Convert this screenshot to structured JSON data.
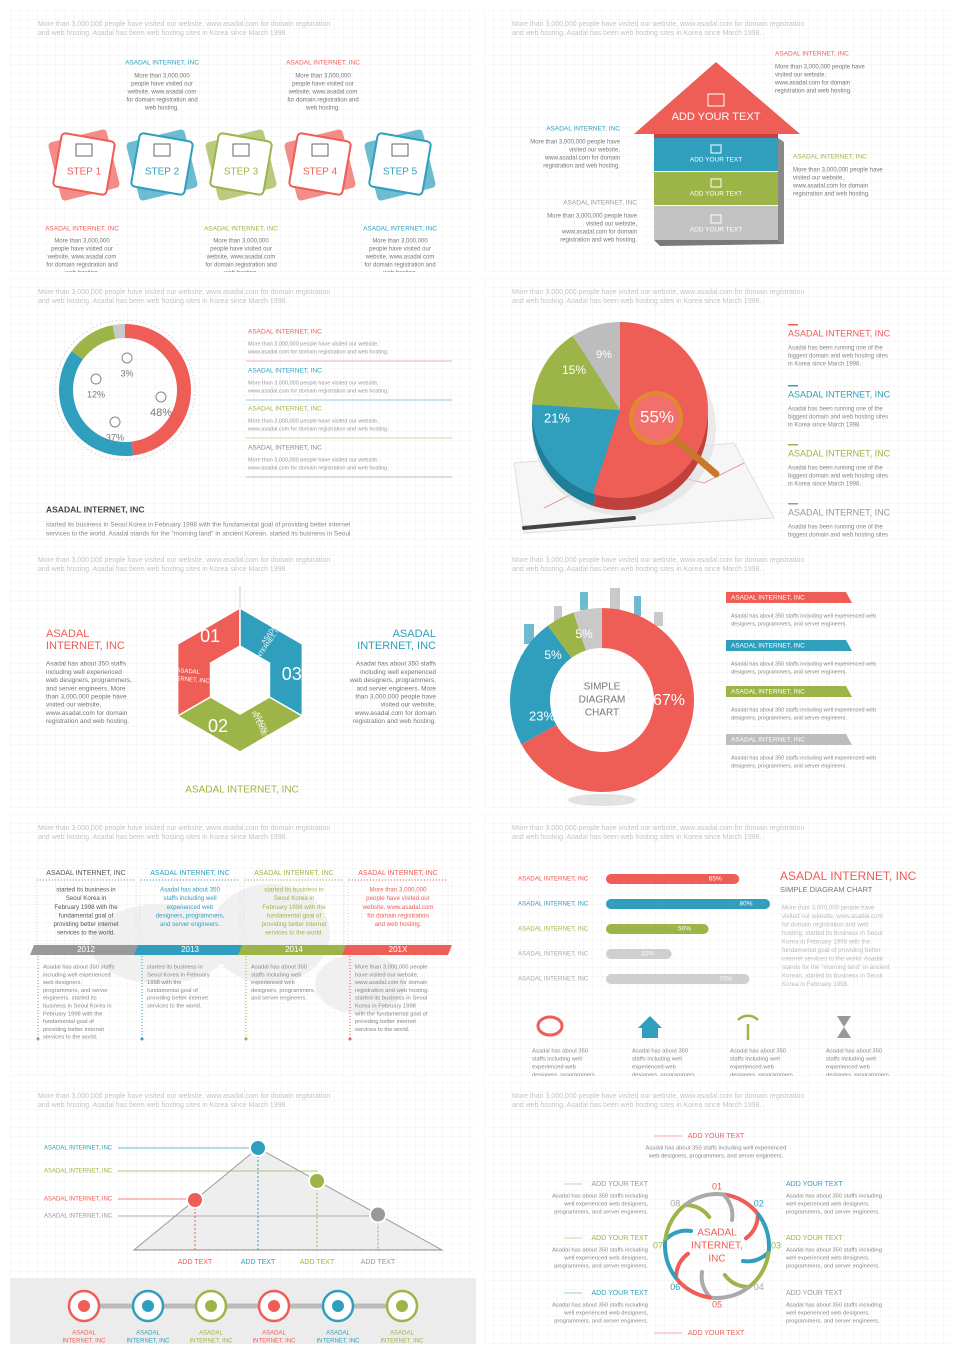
{
  "header": [
    "More than 3,000,000 people have visited our website, www.asadal.com for domain registration",
    "and web hosting.  Asadal has been  web hosting sites in Korea since March 1998."
  ],
  "company": "ASADAL INTERNET, INC",
  "company_lines": [
    "ASADAL",
    "INTERNET, INC"
  ],
  "steps": {
    "labels": [
      "STEP 1",
      "STEP 2",
      "STEP 3",
      "STEP 4",
      "STEP 5"
    ],
    "blurb": [
      "More than 3,000,000",
      "people have visited our",
      "website, www.asadal.com",
      "for domain registration and",
      "web hosting."
    ]
  },
  "arrow": {
    "main": "ADD YOUR TEXT",
    "bands": [
      "ADD YOUR TEXT",
      "ADD YOUR TEXT",
      "ADD YOUR TEXT"
    ],
    "blurb": [
      "More than 3,000,000 people have",
      "visited our website,",
      "www.asadal.com for domain",
      "registration and web hosting."
    ]
  },
  "ring": {
    "values": [
      48,
      37,
      12,
      3
    ],
    "labels": [
      "48%",
      "37%",
      "12%",
      "3%"
    ],
    "item_text": [
      "More than 3,000,000 people have visited our website,",
      "www.asadal.com for domain registration and web hosting."
    ],
    "paragraph": [
      "started its business in  Seoul  Korea  in  February 1998 with the fundamental goal of providing  better  internet",
      "services to the world.  Asadal stands for the \"morning land\" in ancient  Korean.  started its business in  Seoul"
    ]
  },
  "pie": {
    "values": [
      55,
      21,
      15,
      9
    ],
    "labels": [
      "55%",
      "21%",
      "15%",
      "9%"
    ],
    "item_text": [
      "Asadal has been running one of the",
      "biggest domain and web hosting sites",
      "in Korea since March 1998."
    ]
  },
  "hexagon": {
    "text": [
      "Asadal has about 350 staffs",
      "including well experienced",
      "web designers, programmers,",
      "and server engineers. More",
      "than 3,000,000 people have",
      "visited our website,",
      "www.asadal.com for domain",
      "registration and web hosting."
    ],
    "segments": [
      "01",
      "02",
      "03"
    ]
  },
  "donut": {
    "values": [
      67,
      23,
      5,
      5
    ],
    "labels": [
      "67%",
      "23%",
      "5%",
      "5%"
    ],
    "center": [
      "SIMPLE",
      "DIAGRAM",
      "CHART"
    ],
    "item_text": [
      "Asadal has about 350 staffs including well experienced web",
      "designers, programmers, and server engineers."
    ]
  },
  "timeline": {
    "years": [
      "2012",
      "2013",
      "2014",
      "201X"
    ],
    "top": [
      [
        "started its business in",
        "Seoul Korea  in",
        "February 1998 with the",
        "fundamental goal of",
        "providing better internet",
        "services to the world."
      ],
      [
        "Asadal has about 350",
        "staffs including well",
        "experienced web",
        "designers, programmers,",
        "and server engineers."
      ],
      [
        "started its business in",
        "Seoul Korea  in",
        "February 1998 with the",
        "fundamental goal of",
        "providing better internet",
        "services to the world."
      ],
      [
        "More than 3,000,000",
        "people have visited our",
        "website, www.asadal.com",
        "for domain registration",
        "and web hosting."
      ]
    ],
    "bottom": [
      [
        "Asadal has about 350 staffs",
        "including well experienced",
        "web designers,",
        "programmers, and server",
        "engineers.  started its",
        "business in Seoul Korea  in",
        "February 1998 with the",
        "fundamental goal of",
        "providing better internet",
        "services to the world."
      ],
      [
        "started its business in",
        "Seoul Korea  in February",
        "1998 with the",
        "fundamental goal of",
        "providing better internet",
        "services to the world."
      ],
      [
        "Asadal has about 350",
        "staffs including well",
        "experienced web",
        "designers, programmers,",
        "and server engineers."
      ],
      [
        "More than 3,000,000 people",
        "have visited our website,",
        "www.asadal.com for domain",
        "registration and web hosting.",
        "started its business in  Seoul",
        "Korea  in  February 1998",
        "with the fundamental goal of",
        "providing  better  internet",
        "services to the world."
      ]
    ]
  },
  "bars": {
    "values": [
      65,
      80,
      50,
      32,
      70
    ],
    "labels": [
      "65%",
      "80%",
      "50%",
      "32%",
      "70%"
    ],
    "subtitle": "SIMPLE DIAGRAM CHART",
    "paragraph": [
      "More than 3,000,000 people have",
      "visited our website, www.asadal.com",
      "for domain registration and web",
      "hosting.  started its business in  Seoul",
      "Korea  in  February 1998 with the",
      "fundamental goal of providing  better",
      "internet services to the world.  Asadal",
      "stands for the \"morning land\" in ancient",
      "Korean.  started its business in  Seoul",
      "Korea  in  February 1998."
    ],
    "icon_text": [
      "Asadal has about 350",
      "staffs including well",
      "experienced web",
      "designers, programmers"
    ]
  },
  "line": {
    "add_text": "ADD TEXT"
  },
  "cycle": {
    "heading": "ADD YOUR TEXT",
    "numbers": [
      "01",
      "02",
      "03",
      "04",
      "05",
      "06",
      "07",
      "08"
    ],
    "center": [
      "ASADAL",
      "INTERNET,",
      "INC"
    ],
    "top_text": [
      "Asadal has about 350 staffs including well experienced",
      "web designers, programmers, and server engineers."
    ],
    "side_text": [
      "Asadal has about 350 staffs including",
      "well experienced web designers,",
      "programmers, and server engineers."
    ]
  }
}
